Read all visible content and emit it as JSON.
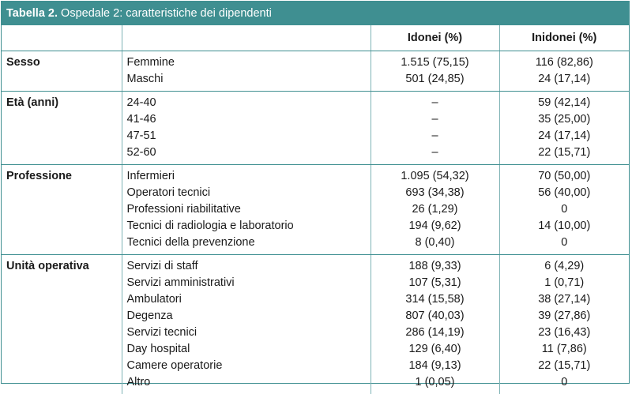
{
  "table": {
    "title_label": "Tabella 2.",
    "title_text": " Ospedale 2: caratteristiche dei dipendenti",
    "headers": [
      "",
      "",
      "Idonei (%)",
      "Inidonei (%)"
    ],
    "groups": [
      {
        "name": "Sesso",
        "rows": [
          {
            "label": "Femmine",
            "idonei": "1.515 (75,15)",
            "inidonei": "116 (82,86)"
          },
          {
            "label": "Maschi",
            "idonei": "501 (24,85)",
            "inidonei": "24 (17,14)"
          }
        ]
      },
      {
        "name": "Età (anni)",
        "rows": [
          {
            "label": "24-40",
            "idonei": "–",
            "inidonei": "59 (42,14)"
          },
          {
            "label": "41-46",
            "idonei": "–",
            "inidonei": "35 (25,00)"
          },
          {
            "label": "47-51",
            "idonei": "–",
            "inidonei": "24 (17,14)"
          },
          {
            "label": "52-60",
            "idonei": "–",
            "inidonei": "22 (15,71)"
          }
        ]
      },
      {
        "name": "Professione",
        "rows": [
          {
            "label": "Infermieri",
            "idonei": "1.095 (54,32)",
            "inidonei": "70 (50,00)"
          },
          {
            "label": "Operatori tecnici",
            "idonei": "693 (34,38)",
            "inidonei": "56 (40,00)"
          },
          {
            "label": "Professioni riabilitative",
            "idonei": "26 (1,29)",
            "inidonei": "0"
          },
          {
            "label": "Tecnici di radiologia e laboratorio",
            "idonei": "194 (9,62)",
            "inidonei": "14 (10,00)"
          },
          {
            "label": "Tecnici della prevenzione",
            "idonei": "8 (0,40)",
            "inidonei": "0"
          }
        ]
      },
      {
        "name": "Unità operativa",
        "rows": [
          {
            "label": "Servizi di staff",
            "idonei": "188 (9,33)",
            "inidonei": "6 (4,29)"
          },
          {
            "label": "Servizi amministrativi",
            "idonei": "107 (5,31)",
            "inidonei": "1 (0,71)"
          },
          {
            "label": "Ambulatori",
            "idonei": "314 (15,58)",
            "inidonei": "38 (27,14)"
          },
          {
            "label": "Degenza",
            "idonei": "807 (40,03)",
            "inidonei": "39 (27,86)"
          },
          {
            "label": "Servizi tecnici",
            "idonei": "286 (14,19)",
            "inidonei": "23 (16,43)"
          },
          {
            "label": "Day hospital",
            "idonei": "129 (6,40)",
            "inidonei": "11 (7,86)"
          },
          {
            "label": "Camere operatorie",
            "idonei": "184 (9,13)",
            "inidonei": "22 (15,71)"
          },
          {
            "label": "Altro",
            "idonei": "1 (0,05)",
            "inidonei": "0"
          }
        ]
      }
    ],
    "colors": {
      "accent": "#3f8f91",
      "rule": "#7fb3b5"
    }
  }
}
